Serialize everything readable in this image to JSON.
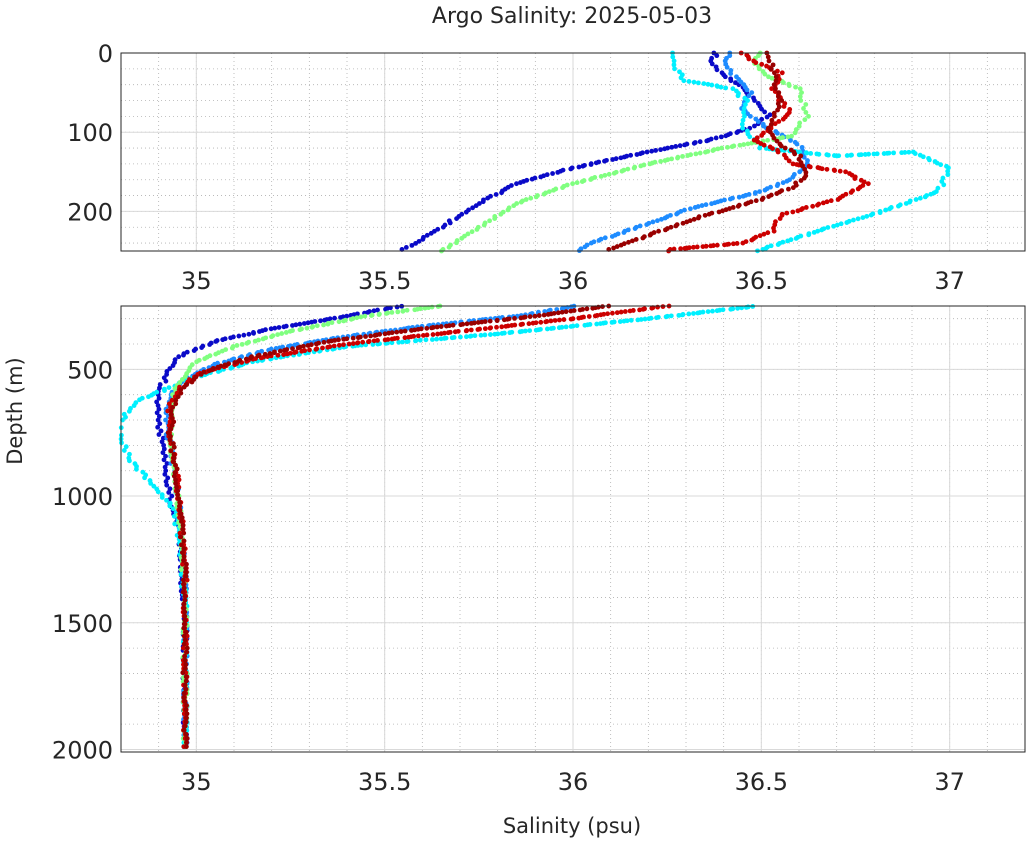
{
  "chart_data": {
    "type": "scatter",
    "title": "Argo Salinity: 2025-05-03",
    "xlabel": "Salinity (psu)",
    "ylabel": "Depth (m)",
    "grid": true,
    "panels": [
      {
        "name": "upper",
        "xlim": [
          34.8,
          37.2
        ],
        "ylim": [
          0,
          250
        ],
        "yreversed": true,
        "xticks": [
          35,
          35.5,
          36,
          36.5,
          37
        ],
        "xtick_labels": [
          "35",
          "35.5",
          "36",
          "36.5",
          "37"
        ],
        "yticks": [
          0,
          100,
          200
        ],
        "ytick_labels": [
          "0",
          "100",
          "200"
        ]
      },
      {
        "name": "lower",
        "xlim": [
          34.8,
          37.2
        ],
        "ylim": [
          250,
          2010
        ],
        "yreversed": true,
        "xticks": [
          35,
          35.5,
          36,
          36.5,
          37
        ],
        "xtick_labels": [
          "35",
          "35.5",
          "36",
          "36.5",
          "37"
        ],
        "yticks": [
          500,
          1000,
          1500,
          2000
        ],
        "ytick_labels": [
          "500",
          "1000",
          "1500",
          "2000"
        ]
      }
    ],
    "series": [
      {
        "color": "#0a0ac8",
        "points": [
          [
            36.38,
            0
          ],
          [
            36.37,
            10
          ],
          [
            36.39,
            25
          ],
          [
            36.44,
            40
          ],
          [
            36.48,
            60
          ],
          [
            36.52,
            78
          ],
          [
            36.47,
            95
          ],
          [
            36.36,
            110
          ],
          [
            36.2,
            125
          ],
          [
            36.0,
            145
          ],
          [
            35.85,
            165
          ],
          [
            35.75,
            190
          ],
          [
            35.65,
            220
          ],
          [
            35.55,
            248
          ],
          [
            35.4,
            290
          ],
          [
            35.2,
            340
          ],
          [
            35.05,
            390
          ],
          [
            34.95,
            450
          ],
          [
            34.92,
            520
          ],
          [
            34.9,
            600
          ],
          [
            34.9,
            700
          ],
          [
            34.91,
            800
          ],
          [
            34.92,
            900
          ],
          [
            34.93,
            1000
          ],
          [
            34.95,
            1100
          ],
          [
            34.96,
            1250
          ],
          [
            34.97,
            1500
          ],
          [
            34.97,
            1750
          ],
          [
            34.97,
            2005
          ]
        ]
      },
      {
        "color": "#1e8cff",
        "points": [
          [
            36.42,
            0
          ],
          [
            36.4,
            10
          ],
          [
            36.43,
            30
          ],
          [
            36.47,
            50
          ],
          [
            36.45,
            70
          ],
          [
            36.5,
            90
          ],
          [
            36.6,
            115
          ],
          [
            36.62,
            140
          ],
          [
            36.58,
            160
          ],
          [
            36.5,
            175
          ],
          [
            36.32,
            195
          ],
          [
            36.2,
            215
          ],
          [
            36.05,
            240
          ],
          [
            35.85,
            290
          ],
          [
            35.6,
            330
          ],
          [
            35.4,
            370
          ],
          [
            35.2,
            420
          ],
          [
            35.05,
            480
          ],
          [
            34.97,
            540
          ],
          [
            34.93,
            600
          ],
          [
            34.92,
            700
          ],
          [
            34.93,
            800
          ],
          [
            34.94,
            900
          ],
          [
            34.95,
            1000
          ],
          [
            34.96,
            1150
          ],
          [
            34.97,
            1350
          ],
          [
            34.97,
            1600
          ],
          [
            34.97,
            1850
          ],
          [
            34.97,
            2005
          ]
        ]
      },
      {
        "color": "#00f0ff",
        "points": [
          [
            36.27,
            0
          ],
          [
            36.27,
            20
          ],
          [
            36.3,
            35
          ],
          [
            36.42,
            45
          ],
          [
            36.46,
            60
          ],
          [
            36.45,
            75
          ],
          [
            36.45,
            95
          ],
          [
            36.5,
            120
          ],
          [
            36.7,
            130
          ],
          [
            36.9,
            125
          ],
          [
            37.0,
            145
          ],
          [
            36.97,
            175
          ],
          [
            36.82,
            200
          ],
          [
            36.65,
            225
          ],
          [
            36.5,
            248
          ],
          [
            36.2,
            300
          ],
          [
            35.8,
            360
          ],
          [
            35.4,
            410
          ],
          [
            35.15,
            470
          ],
          [
            35.0,
            530
          ],
          [
            34.85,
            620
          ],
          [
            34.8,
            700
          ],
          [
            34.8,
            760
          ],
          [
            34.82,
            850
          ],
          [
            34.88,
            950
          ],
          [
            34.94,
            1050
          ],
          [
            34.96,
            1200
          ],
          [
            34.97,
            1450
          ],
          [
            34.97,
            1750
          ],
          [
            34.97,
            2005
          ]
        ]
      },
      {
        "color": "#80ff80",
        "points": [
          [
            36.5,
            0
          ],
          [
            36.48,
            10
          ],
          [
            36.52,
            30
          ],
          [
            36.6,
            45
          ],
          [
            36.61,
            60
          ],
          [
            36.62,
            80
          ],
          [
            36.58,
            105
          ],
          [
            36.4,
            120
          ],
          [
            36.2,
            140
          ],
          [
            36.0,
            165
          ],
          [
            35.85,
            190
          ],
          [
            35.75,
            220
          ],
          [
            35.66,
            248
          ],
          [
            35.45,
            290
          ],
          [
            35.25,
            350
          ],
          [
            35.1,
            410
          ],
          [
            35.0,
            470
          ],
          [
            34.96,
            540
          ],
          [
            34.94,
            600
          ],
          [
            34.93,
            700
          ],
          [
            34.93,
            800
          ],
          [
            34.94,
            900
          ],
          [
            34.95,
            1000
          ],
          [
            34.96,
            1150
          ],
          [
            34.97,
            1400
          ],
          [
            34.97,
            1700
          ],
          [
            34.97,
            2005
          ]
        ]
      },
      {
        "color": "#cc0000",
        "points": [
          [
            36.45,
            0
          ],
          [
            36.48,
            10
          ],
          [
            36.55,
            25
          ],
          [
            36.53,
            45
          ],
          [
            36.55,
            60
          ],
          [
            36.58,
            75
          ],
          [
            36.52,
            95
          ],
          [
            36.48,
            110
          ],
          [
            36.55,
            125
          ],
          [
            36.58,
            140
          ],
          [
            36.72,
            150
          ],
          [
            36.78,
            165
          ],
          [
            36.7,
            185
          ],
          [
            36.55,
            205
          ],
          [
            36.53,
            225
          ],
          [
            36.45,
            240
          ],
          [
            36.26,
            248
          ],
          [
            36.0,
            300
          ],
          [
            35.7,
            350
          ],
          [
            35.4,
            400
          ],
          [
            35.15,
            460
          ],
          [
            35.0,
            520
          ],
          [
            34.95,
            580
          ],
          [
            34.93,
            650
          ],
          [
            34.93,
            750
          ],
          [
            34.94,
            850
          ],
          [
            34.95,
            950
          ],
          [
            34.96,
            1100
          ],
          [
            34.97,
            1300
          ],
          [
            34.97,
            1600
          ],
          [
            34.97,
            2005
          ]
        ]
      },
      {
        "color": "#990000",
        "points": [
          [
            36.52,
            0
          ],
          [
            36.53,
            20
          ],
          [
            36.54,
            40
          ],
          [
            36.55,
            60
          ],
          [
            36.53,
            80
          ],
          [
            36.52,
            100
          ],
          [
            36.55,
            115
          ],
          [
            36.6,
            130
          ],
          [
            36.62,
            155
          ],
          [
            36.58,
            170
          ],
          [
            36.5,
            185
          ],
          [
            36.35,
            205
          ],
          [
            36.2,
            230
          ],
          [
            36.1,
            248
          ],
          [
            35.9,
            290
          ],
          [
            35.6,
            340
          ],
          [
            35.35,
            390
          ],
          [
            35.15,
            450
          ],
          [
            35.02,
            510
          ],
          [
            34.96,
            580
          ],
          [
            34.94,
            650
          ],
          [
            34.93,
            750
          ],
          [
            34.94,
            850
          ],
          [
            34.95,
            950
          ],
          [
            34.96,
            1100
          ],
          [
            34.97,
            1300
          ],
          [
            34.97,
            1600
          ],
          [
            34.97,
            2005
          ]
        ]
      }
    ]
  }
}
